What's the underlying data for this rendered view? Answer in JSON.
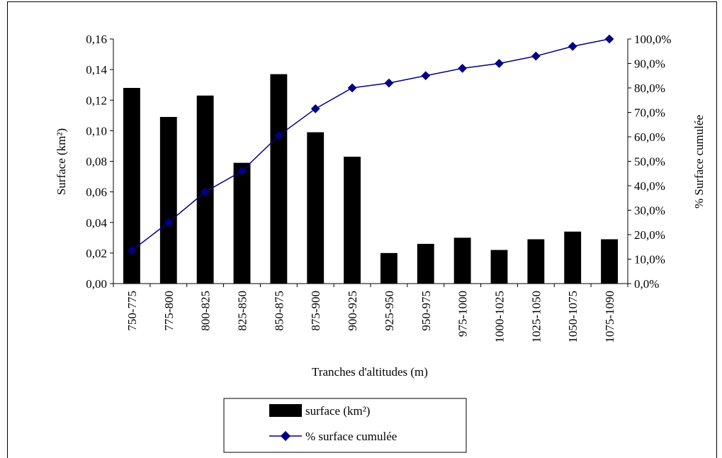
{
  "chart_data": {
    "type": "bar",
    "xlabel": "Tranches d'altitudes (m)",
    "ylabel": "Surface (km²)",
    "y2label": "% Surface cumulée",
    "ylim": [
      0,
      0.16
    ],
    "y2lim": [
      0,
      100
    ],
    "y_ticks": [
      "0,00",
      "0,02",
      "0,04",
      "0,06",
      "0,08",
      "0,10",
      "0,12",
      "0,14",
      "0,16"
    ],
    "y2_ticks": [
      "0,0%",
      "10,0%",
      "20,0%",
      "30,0%",
      "40,0%",
      "50,0%",
      "60,0%",
      "70,0%",
      "80,0%",
      "90,0%",
      "100,0%"
    ],
    "categories": [
      "750-775",
      "775-800",
      "800-825",
      "825-850",
      "850-875",
      "875-900",
      "900-925",
      "925-950",
      "950-975",
      "975-1000",
      "1000-1025",
      "1025-1050",
      "1050-1075",
      "1075-1090"
    ],
    "series": [
      {
        "name": "surface (km²)",
        "type": "bar",
        "axis": "left",
        "color": "#000000",
        "values": [
          0.128,
          0.109,
          0.123,
          0.079,
          0.137,
          0.099,
          0.083,
          0.02,
          0.026,
          0.03,
          0.022,
          0.029,
          0.034,
          0.029
        ]
      },
      {
        "name": "% surface cumulée",
        "type": "line",
        "axis": "right",
        "color": "#000080",
        "values": [
          13.5,
          25.0,
          37.5,
          46.0,
          60.5,
          71.5,
          80.0,
          82.0,
          85.0,
          88.0,
          90.0,
          93.0,
          97.0,
          100.0
        ]
      }
    ],
    "legend": "bottom-center"
  }
}
